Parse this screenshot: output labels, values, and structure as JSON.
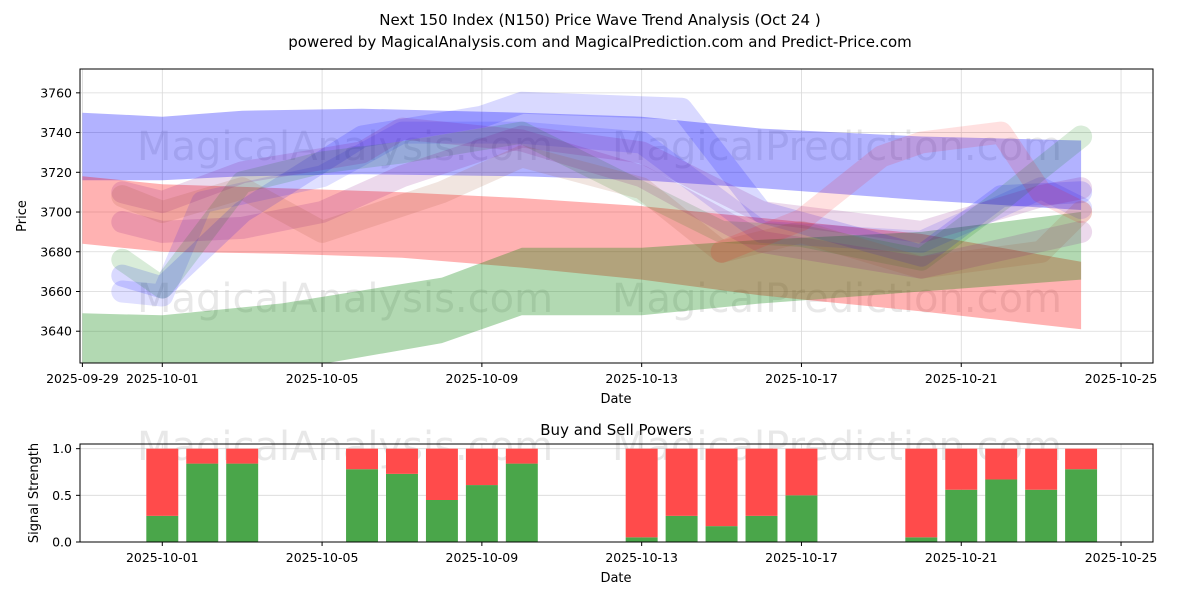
{
  "chart_data": [
    {
      "type": "line",
      "title": "Next 150 Index (N150) Price Wave Trend Analysis (Oct 24 )",
      "subtitle": "powered by MagicalAnalysis.com and MagicalPrediction.com and Predict-Price.com",
      "xlabel": "Date",
      "ylabel": "Price",
      "xlim": [
        "2025-09-29",
        "2025-10-25"
      ],
      "ylim": [
        3624,
        3772
      ],
      "x_ticks": [
        "2025-09-29",
        "2025-10-01",
        "2025-10-05",
        "2025-10-09",
        "2025-10-13",
        "2025-10-17",
        "2025-10-21",
        "2025-10-25"
      ],
      "y_ticks": [
        3640,
        3660,
        3680,
        3700,
        3720,
        3740,
        3760
      ],
      "grid": true,
      "watermarks": [
        "MagicalAnalysis.com",
        "MagicalPrediction.com",
        "MagicalAnalysis.com",
        "MagicalPrediction.com"
      ],
      "bands": [
        {
          "name": "blue channel",
          "color": "#0000ff",
          "opacity": 0.3,
          "x": [
            "2025-09-29",
            "2025-10-01",
            "2025-10-03",
            "2025-10-06",
            "2025-10-10",
            "2025-10-13",
            "2025-10-16",
            "2025-10-20",
            "2025-10-24"
          ],
          "upper": [
            3750,
            3748,
            3751,
            3752,
            3750,
            3748,
            3742,
            3738,
            3736
          ],
          "lower": [
            3716,
            3716,
            3718,
            3719,
            3718,
            3716,
            3712,
            3706,
            3701
          ]
        },
        {
          "name": "red channel",
          "color": "#ff0000",
          "opacity": 0.3,
          "x": [
            "2025-09-29",
            "2025-10-01",
            "2025-10-04",
            "2025-10-07",
            "2025-10-10",
            "2025-10-13",
            "2025-10-16",
            "2025-10-20",
            "2025-10-24"
          ],
          "upper": [
            3718,
            3714,
            3712,
            3710,
            3707,
            3703,
            3697,
            3689,
            3675
          ],
          "lower": [
            3684,
            3680,
            3679,
            3677,
            3672,
            3666,
            3658,
            3650,
            3641
          ]
        },
        {
          "name": "green channel",
          "color": "#008000",
          "opacity": 0.3,
          "x": [
            "2025-09-29",
            "2025-10-01",
            "2025-10-04",
            "2025-10-08",
            "2025-10-10",
            "2025-10-13",
            "2025-10-16",
            "2025-10-20",
            "2025-10-24"
          ],
          "upper": [
            3649,
            3648,
            3654,
            3667,
            3682,
            3682,
            3686,
            3690,
            3700
          ],
          "lower": [
            3620,
            3618,
            3620,
            3634,
            3648,
            3648,
            3654,
            3660,
            3666
          ]
        }
      ],
      "waves": [
        {
          "color": "#0000ff",
          "opacity": 0.15,
          "x": [
            "2025-09-30",
            "2025-10-01",
            "2025-10-03",
            "2025-10-06",
            "2025-10-09",
            "2025-10-10",
            "2025-10-14",
            "2025-10-16",
            "2025-10-20",
            "2025-10-22",
            "2025-10-24"
          ],
          "y": [
            3668,
            3662,
            3700,
            3738,
            3748,
            3755,
            3752,
            3700,
            3678,
            3708,
            3710
          ]
        },
        {
          "color": "#0000ff",
          "opacity": 0.12,
          "x": [
            "2025-09-30",
            "2025-10-01",
            "2025-10-02",
            "2025-10-05",
            "2025-10-07",
            "2025-10-10",
            "2025-10-13",
            "2025-10-16",
            "2025-10-20",
            "2025-10-23",
            "2025-10-24"
          ],
          "y": [
            3660,
            3658,
            3705,
            3718,
            3740,
            3740,
            3735,
            3690,
            3685,
            3712,
            3702
          ]
        },
        {
          "color": "#008000",
          "opacity": 0.15,
          "x": [
            "2025-09-30",
            "2025-10-01",
            "2025-10-03",
            "2025-10-05",
            "2025-10-07",
            "2025-10-10",
            "2025-10-12",
            "2025-10-15",
            "2025-10-17",
            "2025-10-20",
            "2025-10-22",
            "2025-10-24"
          ],
          "y": [
            3676,
            3662,
            3715,
            3725,
            3730,
            3740,
            3720,
            3690,
            3688,
            3676,
            3706,
            3738
          ]
        },
        {
          "color": "#800080",
          "opacity": 0.15,
          "x": [
            "2025-09-30",
            "2025-10-01",
            "2025-10-03",
            "2025-10-06",
            "2025-10-07",
            "2025-10-10",
            "2025-10-13",
            "2025-10-16",
            "2025-10-20",
            "2025-10-24"
          ],
          "y": [
            3710,
            3705,
            3720,
            3730,
            3742,
            3736,
            3718,
            3685,
            3672,
            3690
          ]
        },
        {
          "color": "#800080",
          "opacity": 0.15,
          "x": [
            "2025-09-30",
            "2025-10-01",
            "2025-10-03",
            "2025-10-05",
            "2025-10-07",
            "2025-10-10",
            "2025-10-13",
            "2025-10-16",
            "2025-10-20",
            "2025-10-23",
            "2025-10-24"
          ],
          "y": [
            3695,
            3690,
            3692,
            3700,
            3718,
            3738,
            3730,
            3700,
            3690,
            3708,
            3712
          ]
        },
        {
          "color": "#a0522d",
          "opacity": 0.15,
          "x": [
            "2025-09-30",
            "2025-10-01",
            "2025-10-03",
            "2025-10-05",
            "2025-10-08",
            "2025-10-10",
            "2025-10-13",
            "2025-10-15",
            "2025-10-17",
            "2025-10-20",
            "2025-10-23",
            "2025-10-24"
          ],
          "y": [
            3708,
            3700,
            3712,
            3690,
            3710,
            3728,
            3712,
            3680,
            3690,
            3672,
            3680,
            3700
          ]
        },
        {
          "color": "#ff0000",
          "opacity": 0.12,
          "x": [
            "2025-10-15",
            "2025-10-17",
            "2025-10-19",
            "2025-10-20",
            "2025-10-22",
            "2025-10-23",
            "2025-10-24"
          ],
          "y": [
            3680,
            3696,
            3728,
            3735,
            3740,
            3710,
            3700
          ]
        }
      ]
    },
    {
      "type": "bar",
      "title": "Buy and Sell Powers",
      "xlabel": "Date",
      "ylabel": "Signal Strength",
      "ylim": [
        0,
        1.05
      ],
      "y_ticks": [
        "0.0",
        "0.5",
        "1.0"
      ],
      "x_ticks": [
        "2025-10-01",
        "2025-10-05",
        "2025-10-09",
        "2025-10-13",
        "2025-10-17",
        "2025-10-21",
        "2025-10-25"
      ],
      "colors": {
        "buy": "#4aa64a",
        "sell": "#ff4b4b"
      },
      "series": [
        {
          "name": "Buy",
          "x": [
            "2025-10-01",
            "2025-10-02",
            "2025-10-03",
            "2025-10-06",
            "2025-10-07",
            "2025-10-08",
            "2025-10-09",
            "2025-10-10",
            "2025-10-13",
            "2025-10-14",
            "2025-10-15",
            "2025-10-16",
            "2025-10-17",
            "2025-10-20",
            "2025-10-21",
            "2025-10-22",
            "2025-10-23",
            "2025-10-24"
          ],
          "values": [
            0.28,
            0.84,
            0.84,
            0.78,
            0.73,
            0.45,
            0.61,
            0.84,
            0.05,
            0.28,
            0.17,
            0.28,
            0.5,
            0.05,
            0.56,
            0.67,
            0.56,
            0.78
          ]
        },
        {
          "name": "Sell",
          "x": [
            "2025-10-01",
            "2025-10-02",
            "2025-10-03",
            "2025-10-06",
            "2025-10-07",
            "2025-10-08",
            "2025-10-09",
            "2025-10-10",
            "2025-10-13",
            "2025-10-14",
            "2025-10-15",
            "2025-10-16",
            "2025-10-17",
            "2025-10-20",
            "2025-10-21",
            "2025-10-22",
            "2025-10-23",
            "2025-10-24"
          ],
          "values": [
            0.72,
            0.16,
            0.16,
            0.22,
            0.27,
            0.55,
            0.39,
            0.16,
            0.95,
            0.72,
            0.83,
            0.72,
            0.5,
            0.95,
            0.44,
            0.33,
            0.44,
            0.22
          ]
        }
      ]
    }
  ]
}
